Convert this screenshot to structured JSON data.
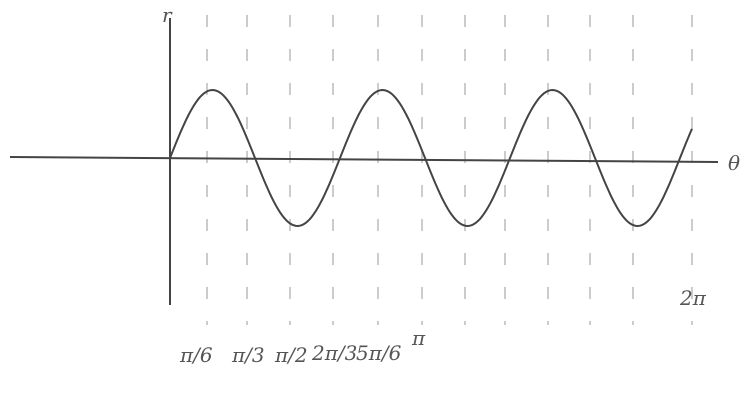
{
  "axis_labels": {
    "vertical": "r",
    "horizontal": "θ"
  },
  "tick_labels": [
    "π/6",
    "π/3",
    "π/2",
    "2π/3",
    "5π/6",
    "π",
    "2π"
  ]
}
